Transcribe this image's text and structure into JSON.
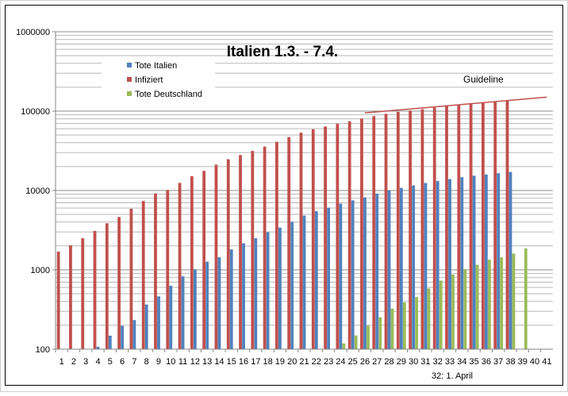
{
  "chart_data": {
    "type": "bar",
    "title": "Italien 1.3. - 7.4.",
    "yscale": "log",
    "ylim": [
      100,
      1000000
    ],
    "yticks": [
      "100",
      "1000",
      "10000",
      "100000",
      "1000000"
    ],
    "grid": true,
    "legend_position": "top-left",
    "categories": [
      "1",
      "2",
      "3",
      "4",
      "5",
      "6",
      "7",
      "8",
      "9",
      "10",
      "11",
      "12",
      "13",
      "14",
      "15",
      "16",
      "17",
      "18",
      "19",
      "20",
      "21",
      "22",
      "23",
      "24",
      "25",
      "26",
      "27",
      "28",
      "29",
      "30",
      "31",
      "32",
      "33",
      "34",
      "35",
      "36",
      "37",
      "38",
      "39",
      "40",
      "41"
    ],
    "series": [
      {
        "name": "Tote Italien",
        "color": "#4f81bd",
        "values": [
          null,
          null,
          null,
          107,
          148,
          197,
          233,
          366,
          463,
          631,
          827,
          1016,
          1266,
          1441,
          1809,
          2158,
          2503,
          2978,
          3405,
          4032,
          4825,
          5476,
          6077,
          6820,
          7503,
          8165,
          9134,
          10023,
          10779,
          11591,
          12428,
          13155,
          13915,
          14681,
          15362,
          15887,
          16523,
          17127,
          null,
          null,
          null
        ]
      },
      {
        "name": "Infiziert",
        "color": "#c0504d",
        "values": [
          1694,
          2036,
          2502,
          3089,
          3858,
          4636,
          5883,
          7375,
          9172,
          10149,
          12462,
          15113,
          17660,
          21157,
          24747,
          27980,
          31506,
          35713,
          41035,
          47021,
          53578,
          59138,
          63927,
          69176,
          74386,
          80539,
          86498,
          92472,
          97689,
          101739,
          105792,
          110574,
          115242,
          119827,
          124632,
          128948,
          132547,
          135586,
          null,
          null,
          null
        ]
      },
      {
        "name": "Tote Deutschland",
        "color": "#9bbb59",
        "values": [
          null,
          null,
          null,
          null,
          null,
          null,
          null,
          null,
          null,
          null,
          null,
          null,
          null,
          null,
          null,
          null,
          null,
          null,
          null,
          null,
          null,
          null,
          null,
          118,
          149,
          198,
          253,
          325,
          389,
          455,
          583,
          732,
          872,
          1017,
          1158,
          1342,
          1434,
          1607,
          1861,
          null,
          null
        ]
      }
    ],
    "annotations": {
      "guideline_label": "Guideline",
      "guideline_from": {
        "x": 26,
        "y": 95000
      },
      "guideline_to": {
        "x": 41,
        "y": 150000
      },
      "april_label": "32: 1. April"
    }
  }
}
